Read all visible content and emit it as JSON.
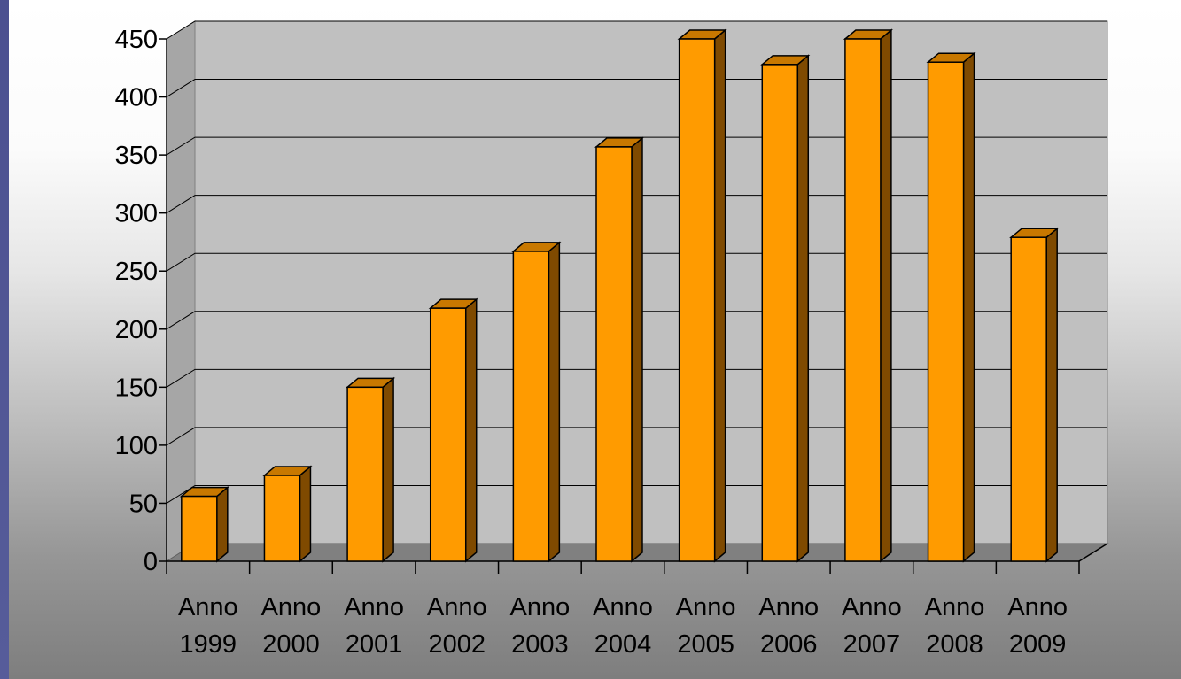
{
  "chart_data": {
    "type": "bar",
    "style": "3d-column",
    "categories": [
      "Anno 1999",
      "Anno 2000",
      "Anno 2001",
      "Anno 2002",
      "Anno 2003",
      "Anno 2004",
      "Anno 2005",
      "Anno 2006",
      "Anno 2007",
      "Anno 2008",
      "Anno 2009"
    ],
    "category_lines": [
      [
        "Anno",
        "1999"
      ],
      [
        "Anno",
        "2000"
      ],
      [
        "Anno",
        "2001"
      ],
      [
        "Anno",
        "2002"
      ],
      [
        "Anno",
        "2003"
      ],
      [
        "Anno",
        "2004"
      ],
      [
        "Anno",
        "2005"
      ],
      [
        "Anno",
        "2006"
      ],
      [
        "Anno",
        "2007"
      ],
      [
        "Anno",
        "2008"
      ],
      [
        "Anno",
        "2009"
      ]
    ],
    "values": [
      56,
      74,
      150,
      218,
      267,
      357,
      450,
      428,
      450,
      430,
      279
    ],
    "title": "",
    "xlabel": "",
    "ylabel": "",
    "ylim": [
      0,
      450
    ],
    "yticks": [
      0,
      50,
      100,
      150,
      200,
      250,
      300,
      350,
      400,
      450
    ],
    "grid": true,
    "legend": "none",
    "colors": {
      "bar_front": "#ff9b00",
      "bar_top": "#c87800",
      "bar_side": "#7f4a00",
      "wall": "#c0c0c0",
      "floor": "#808080",
      "outline": "#000000"
    }
  }
}
